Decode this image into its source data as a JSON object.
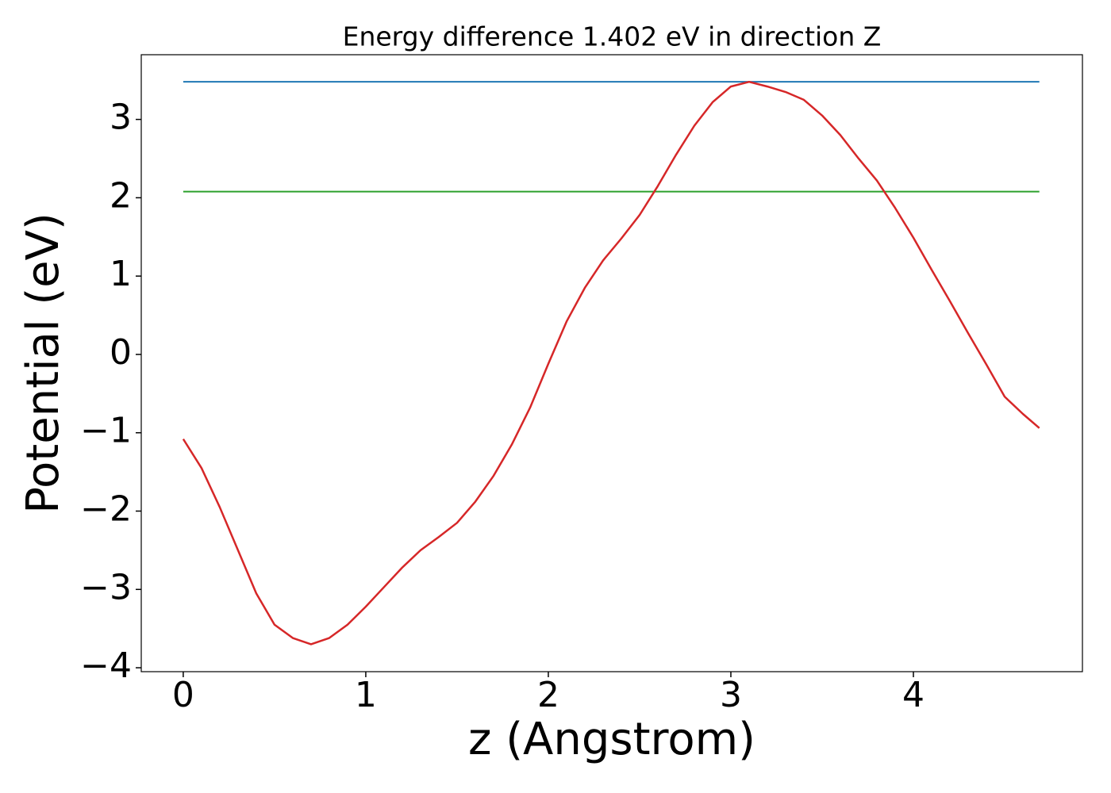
{
  "chart_data": {
    "type": "line",
    "title": "Energy difference 1.402 eV in direction Z",
    "xlabel": "z (Angstrom)",
    "ylabel": "Potential (eV)",
    "x": [
      0,
      0.1,
      0.2,
      0.3,
      0.4,
      0.5,
      0.6,
      0.7,
      0.8,
      0.9,
      1.0,
      1.1,
      1.2,
      1.3,
      1.4,
      1.5,
      1.6,
      1.7,
      1.8,
      1.9,
      2.0,
      2.1,
      2.2,
      2.3,
      2.4,
      2.5,
      2.6,
      2.7,
      2.8,
      2.9,
      3.0,
      3.1,
      3.2,
      3.3,
      3.4,
      3.5,
      3.6,
      3.7,
      3.8,
      3.9,
      4.0,
      4.1,
      4.2,
      4.3,
      4.4,
      4.5,
      4.6,
      4.69
    ],
    "series": [
      {
        "color": "#d62728",
        "values": [
          -1.08,
          -1.45,
          -1.95,
          -2.5,
          -3.05,
          -3.45,
          -3.62,
          -3.7,
          -3.62,
          -3.45,
          -3.22,
          -2.97,
          -2.72,
          -2.5,
          -2.33,
          -2.15,
          -1.88,
          -1.55,
          -1.15,
          -0.68,
          -0.12,
          0.42,
          0.85,
          1.2,
          1.48,
          1.78,
          2.15,
          2.55,
          2.92,
          3.22,
          3.42,
          3.48,
          3.42,
          3.35,
          3.25,
          3.05,
          2.8,
          2.5,
          2.22,
          1.87,
          1.49,
          1.08,
          0.68,
          0.27,
          -0.13,
          -0.54,
          -0.76,
          -0.94
        ]
      }
    ],
    "hlines": [
      {
        "value": 3.48,
        "color": "#1f77b4"
      },
      {
        "value": 2.078,
        "color": "#2ca02c"
      }
    ],
    "xlim": [
      -0.23,
      4.926
    ],
    "ylim": [
      -4.05,
      3.826
    ],
    "xticks": [
      0,
      1,
      2,
      3,
      4
    ],
    "yticks": [
      {
        "value": -4,
        "label": "−4"
      },
      {
        "value": -3,
        "label": "−3"
      },
      {
        "value": -2,
        "label": "−2"
      },
      {
        "value": -1,
        "label": "−1"
      },
      0,
      1,
      2,
      3
    ],
    "grid": false
  }
}
